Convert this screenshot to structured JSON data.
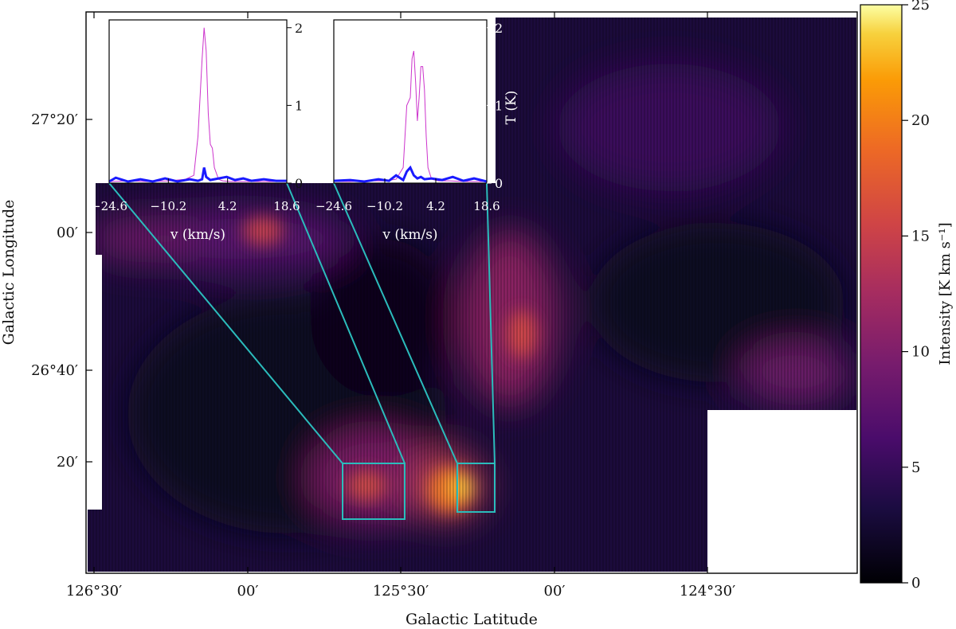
{
  "chart_data": {
    "type": "heatmap",
    "main": {
      "xlabel": "Galactic Latitude",
      "ylabel": "Galactic Longitude",
      "xticks": [
        "126°30′",
        "00′",
        "125°30′",
        "00′",
        "124°30′"
      ],
      "yticks": [
        "27°20′",
        "00′",
        "26°40′",
        "20′"
      ],
      "colorbar": {
        "label": "Intensity [K km s⁻¹]",
        "ticks": [
          "0",
          "5",
          "10",
          "15",
          "20",
          "25"
        ],
        "range": [
          0,
          25
        ],
        "colormap": "inferno"
      },
      "regions_of_interest": [
        "left box",
        "right box"
      ]
    },
    "insets": [
      {
        "xlabel": "v (km/s)",
        "xticks": [
          "−24.6",
          "−10.2",
          "4.2",
          "18.6"
        ],
        "yticks": [
          "0",
          "1",
          "2"
        ],
        "ylabel": "",
        "series": [
          {
            "color": "#cc33cc",
            "x": [
              -24.6,
              -20,
              -15,
              -10,
              -6,
              -4,
              -3,
              -2,
              -1.5,
              -1,
              -0.5,
              0,
              0.5,
              1,
              2,
              3,
              5,
              10,
              15,
              18.6
            ],
            "y": [
              0.02,
              0.03,
              0.02,
              0.03,
              0.05,
              0.1,
              0.6,
              1.6,
              2.0,
              1.7,
              0.9,
              0.5,
              0.45,
              0.2,
              0.05,
              0.03,
              0.02,
              0.02,
              0.02,
              0.02
            ]
          },
          {
            "color": "#1a1aff",
            "x": [
              -24.6,
              -23,
              -20,
              -17,
              -14,
              -11,
              -8,
              -5,
              -3,
              -2,
              -1.5,
              -1,
              0,
              2,
              4,
              6,
              8,
              10,
              13,
              16,
              18.6
            ],
            "y": [
              0.02,
              0.07,
              0.02,
              0.05,
              0.02,
              0.06,
              0.02,
              0.05,
              0.03,
              0.05,
              0.2,
              0.08,
              0.04,
              0.06,
              0.08,
              0.04,
              0.06,
              0.03,
              0.05,
              0.03,
              0.03
            ]
          }
        ]
      },
      {
        "xlabel": "v (km/s)",
        "xticks": [
          "−24.6",
          "−10.2",
          "4.2",
          "18.6"
        ],
        "yticks": [
          "0",
          "1",
          "2"
        ],
        "ylabel": "T (K)",
        "series": [
          {
            "color": "#cc33cc",
            "x": [
              -24.6,
              -20,
              -15,
              -10,
              -7,
              -5,
              -4,
              -3,
              -2.5,
              -2,
              -1.5,
              -1,
              -0.5,
              0,
              0.5,
              1,
              1.5,
              2,
              3,
              5,
              8,
              12,
              18.6
            ],
            "y": [
              0.02,
              0.02,
              0.03,
              0.03,
              0.05,
              0.2,
              1.0,
              1.1,
              1.6,
              1.7,
              1.3,
              0.8,
              1.1,
              1.5,
              1.5,
              1.2,
              0.6,
              0.2,
              0.05,
              0.03,
              0.03,
              0.02,
              0.02
            ]
          },
          {
            "color": "#1a1aff",
            "x": [
              -24.6,
              -20,
              -16,
              -12,
              -9,
              -7,
              -5,
              -4,
              -3,
              -2,
              -1,
              0,
              1,
              3,
              6,
              9,
              12,
              15,
              18.6
            ],
            "y": [
              0.03,
              0.04,
              0.02,
              0.05,
              0.03,
              0.1,
              0.04,
              0.15,
              0.2,
              0.1,
              0.06,
              0.08,
              0.05,
              0.06,
              0.04,
              0.08,
              0.03,
              0.06,
              0.02
            ]
          }
        ]
      }
    ]
  }
}
